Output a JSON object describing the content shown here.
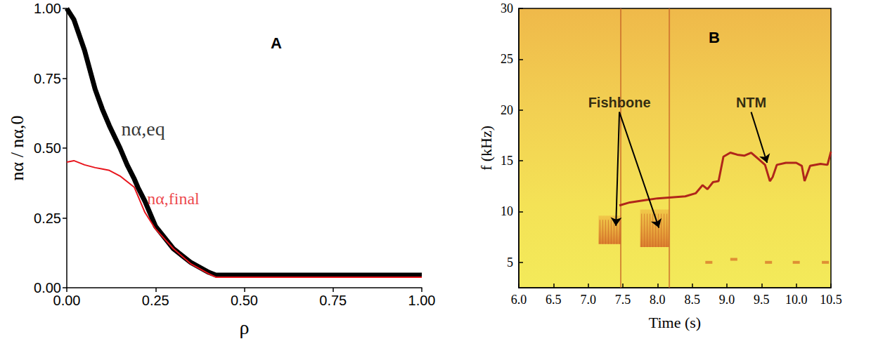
{
  "chart_data": [
    {
      "type": "line",
      "panel": "A",
      "xlabel": "ρ",
      "ylabel": "nα / nα,0",
      "xlim": [
        0,
        1
      ],
      "xticks": [
        {
          "value": 0,
          "label": "0.00"
        },
        {
          "value": 0.25,
          "label": "0.25"
        },
        {
          "value": 0.5,
          "label": "0.50"
        },
        {
          "value": 0.75,
          "label": "0.75"
        },
        {
          "value": 1,
          "label": "1.00"
        }
      ],
      "ylim": [
        0,
        1
      ],
      "yticks": [
        {
          "value": 0,
          "label": "0.00"
        },
        {
          "value": 0.25,
          "label": "0.25"
        },
        {
          "value": 0.5,
          "label": "0.50"
        },
        {
          "value": 0.75,
          "label": "0.75"
        },
        {
          "value": 1,
          "label": "1.00"
        }
      ],
      "grid": false,
      "x": [
        0,
        0.02,
        0.05,
        0.08,
        0.1,
        0.12,
        0.15,
        0.17,
        0.19,
        0.2,
        0.22,
        0.25,
        0.3,
        0.35,
        0.4,
        0.42,
        0.5,
        0.75,
        1.0
      ],
      "series": [
        {
          "name": "nα,eq",
          "color": "#000000",
          "label_at": [
            0.215,
            0.57
          ],
          "values": [
            1.0,
            0.96,
            0.85,
            0.71,
            0.64,
            0.58,
            0.5,
            0.44,
            0.39,
            0.36,
            0.31,
            0.22,
            0.14,
            0.09,
            0.055,
            0.045,
            0.045,
            0.045,
            0.045
          ]
        },
        {
          "name": "nα,final",
          "color": "#e8141c",
          "label_at": [
            0.3,
            0.32
          ],
          "values": [
            0.45,
            0.455,
            0.44,
            0.43,
            0.425,
            0.42,
            0.4,
            0.38,
            0.36,
            0.33,
            0.27,
            0.21,
            0.14,
            0.085,
            0.05,
            0.038,
            0.038,
            0.038,
            0.038
          ]
        }
      ]
    },
    {
      "type": "spectrogram",
      "panel": "B",
      "xlabel": "Time (s)",
      "ylabel": "f (kHz)",
      "xlim": [
        6,
        10.5
      ],
      "xticks": [
        {
          "value": 6,
          "label": "6.0"
        },
        {
          "value": 6.5,
          "label": "6.5"
        },
        {
          "value": 7,
          "label": "7.0"
        },
        {
          "value": 7.5,
          "label": "7.5"
        },
        {
          "value": 8,
          "label": "8.0"
        },
        {
          "value": 8.5,
          "label": "8.5"
        },
        {
          "value": 9,
          "label": "9.0"
        },
        {
          "value": 9.5,
          "label": "9.5"
        },
        {
          "value": 10,
          "label": "10.0"
        },
        {
          "value": 10.5,
          "label": "10.5"
        }
      ],
      "ylim": [
        2.5,
        30
      ],
      "yticks": [
        5,
        10,
        15,
        20,
        25,
        30
      ],
      "grid": false,
      "series": [
        {
          "type": "line",
          "color": "#b0261a",
          "x": [
            7.45,
            7.6,
            7.8,
            8.0,
            8.2,
            8.4,
            8.55,
            8.65,
            8.72,
            8.8,
            8.88,
            8.95,
            9.05,
            9.15,
            9.25,
            9.35,
            9.45,
            9.55,
            9.62,
            9.66,
            9.72,
            9.85,
            10.0,
            10.08,
            10.12,
            10.2,
            10.35,
            10.45,
            10.5
          ],
          "values": [
            10.6,
            10.9,
            11.1,
            11.3,
            11.4,
            11.5,
            11.8,
            12.6,
            12.2,
            12.9,
            13.0,
            15.4,
            15.8,
            15.6,
            15.5,
            15.8,
            15.2,
            14.6,
            13.0,
            13.4,
            14.6,
            14.8,
            14.8,
            14.5,
            13.0,
            14.5,
            14.7,
            14.6,
            15.9
          ]
        },
        {
          "type": "scatter",
          "color": "#d9782a",
          "x": [
            8.74,
            9.1,
            9.6,
            10.0,
            10.42
          ],
          "values": [
            5.0,
            5.3,
            5.0,
            5.0,
            5.0
          ]
        }
      ],
      "bursts": [
        {
          "x": [
            7.15,
            7.47
          ],
          "y": [
            6.8,
            9.6
          ]
        },
        {
          "x": [
            7.75,
            8.17
          ],
          "y": [
            6.5,
            10.2
          ]
        }
      ],
      "crashes": [
        7.47,
        8.17
      ],
      "annotations": [
        {
          "text": "Fishbone",
          "x": 7.45,
          "y": 19.8,
          "arrows": [
            [
              7.4,
              8.6
            ],
            [
              8.02,
              8.4
            ]
          ]
        },
        {
          "text": "NTM",
          "x": 9.35,
          "y": 19.8,
          "arrows": [
            [
              9.58,
              14.8
            ]
          ]
        }
      ]
    }
  ]
}
